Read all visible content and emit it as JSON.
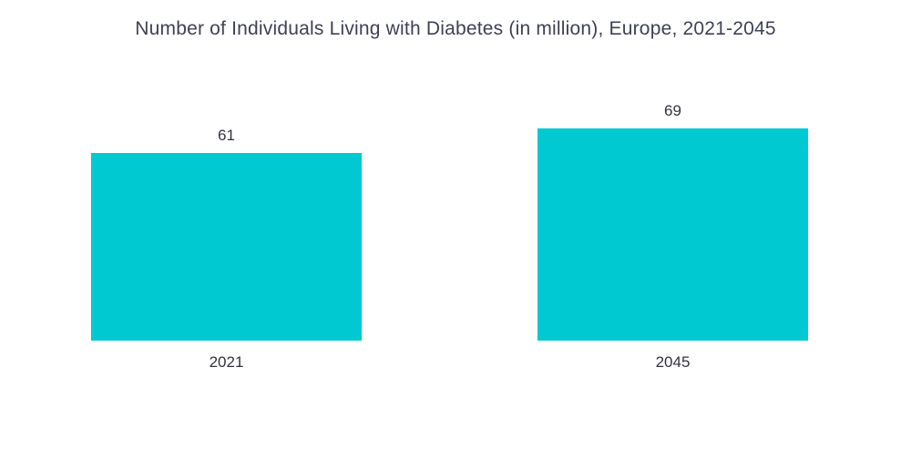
{
  "chart_data": {
    "type": "bar",
    "title": "Number of Individuals Living with Diabetes (in million), Europe, 2021-2045",
    "categories": [
      "2021",
      "2045"
    ],
    "values": [
      61,
      69
    ],
    "ylim": [
      0,
      69
    ],
    "xlabel": "",
    "ylabel": "",
    "grid": false,
    "legend": false,
    "bar_color": "#00c9d1",
    "title_color": "#3f4254",
    "label_color": "#33333f",
    "background_color": "#ffffff"
  }
}
